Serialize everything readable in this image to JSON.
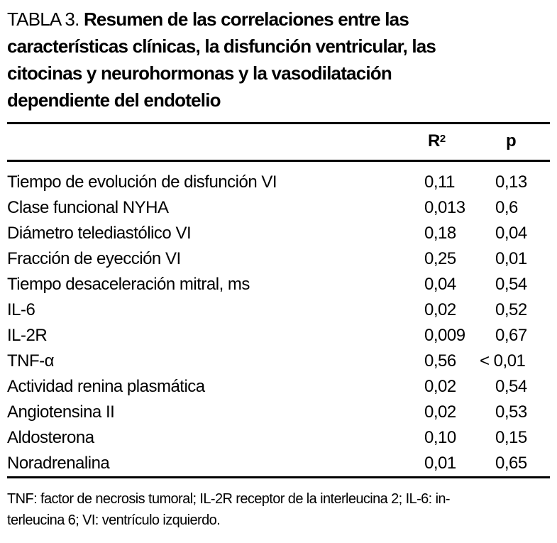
{
  "page": {
    "background_color": "#ffffff",
    "text_color": "#000000"
  },
  "title": {
    "prefix": "TABLA 3. ",
    "lines": [
      "Resumen de las correlaciones entre las",
      "características clínicas, la disfunción ventricular, las",
      "citocinas y neurohormonas y la vasodilatación",
      "dependiente del endotelio"
    ]
  },
  "table": {
    "header": {
      "r2_base": "R",
      "r2_sup": "2",
      "p": "p"
    },
    "rows": [
      {
        "label": "Tiempo de evolución de disfunción VI",
        "r2": "0,11",
        "p": "0,13"
      },
      {
        "label": "Clase funcional NYHA",
        "r2": "0,013",
        "p": "0,6"
      },
      {
        "label": "Diámetro telediastólico VI",
        "r2": "0,18",
        "p": "0,04"
      },
      {
        "label": "Fracción de eyección VI",
        "r2": "0,25",
        "p": "0,01"
      },
      {
        "label": "Tiempo desaceleración mitral, ms",
        "r2": "0,04",
        "p": "0,54"
      },
      {
        "label": "IL-6",
        "r2": "0,02",
        "p": "0,52"
      },
      {
        "label": "IL-2R",
        "r2": "0,009",
        "p": "0,67"
      },
      {
        "label": "TNF-α",
        "r2": "0,56",
        "p": "< 0,01"
      },
      {
        "label": "Actividad renina plasmática",
        "r2": "0,02",
        "p": "0,54"
      },
      {
        "label": "Angiotensina II",
        "r2": "0,02",
        "p": "0,53"
      },
      {
        "label": "Aldosterona",
        "r2": "0,10",
        "p": "0,15"
      },
      {
        "label": "Noradrenalina",
        "r2": "0,01",
        "p": "0,65"
      }
    ]
  },
  "footnote": {
    "lines": [
      "TNF: factor de necrosis tumoral; IL-2R receptor de la interleucina 2; IL-6: in-",
      "terleucina 6; VI: ventrículo izquierdo."
    ]
  }
}
